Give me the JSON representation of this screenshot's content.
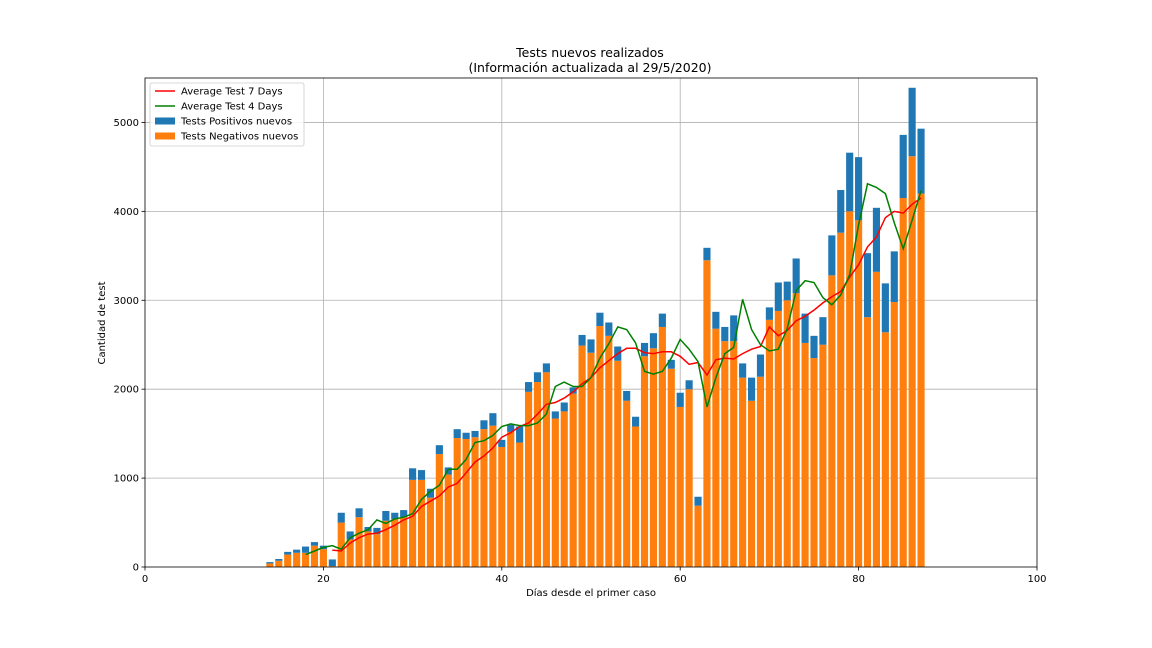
{
  "chart_data": {
    "type": "bar",
    "title": "Tests nuevos realizados",
    "subtitle": "(Información actualizada al 29/5/2020)",
    "xlabel": "Días desde el primer caso",
    "ylabel": "Cantidad de test",
    "xlim": [
      0,
      100
    ],
    "ylim": [
      0,
      5500
    ],
    "xticks": [
      0,
      20,
      40,
      60,
      80,
      100
    ],
    "yticks": [
      0,
      1000,
      2000,
      3000,
      4000,
      5000
    ],
    "grid": true,
    "legend_position": "top-left",
    "colors": {
      "negativos": "#ff7f0e",
      "positivos": "#1f77b4",
      "avg7": "#ff0000",
      "avg4": "#008000"
    },
    "legend": [
      {
        "key": "avg7",
        "label": "Average Test 7 Days",
        "kind": "line"
      },
      {
        "key": "avg4",
        "label": "Average Test 4 Days",
        "kind": "line"
      },
      {
        "key": "positivos",
        "label": "Tests Positivos nuevos",
        "kind": "bar"
      },
      {
        "key": "negativos",
        "label": "Tests Negativos nuevos",
        "kind": "bar"
      }
    ],
    "x": [
      14,
      15,
      16,
      17,
      18,
      19,
      20,
      21,
      22,
      23,
      24,
      25,
      26,
      27,
      28,
      29,
      30,
      31,
      32,
      33,
      34,
      35,
      36,
      37,
      38,
      39,
      40,
      41,
      42,
      43,
      44,
      45,
      46,
      47,
      48,
      49,
      50,
      51,
      52,
      53,
      54,
      55,
      56,
      57,
      58,
      59,
      60,
      61,
      62,
      63,
      64,
      65,
      66,
      67,
      68,
      69,
      70,
      71,
      72,
      73,
      74,
      75,
      76,
      77,
      78,
      79,
      80,
      81,
      82,
      83,
      84,
      85,
      86,
      87
    ],
    "series": [
      {
        "name": "Tests Negativos nuevos",
        "key": "negativos",
        "values": [
          40,
          70,
          140,
          160,
          160,
          240,
          200,
          10,
          500,
          310,
          560,
          400,
          370,
          520,
          540,
          560,
          980,
          980,
          780,
          1270,
          1040,
          1450,
          1440,
          1460,
          1550,
          1590,
          1350,
          1520,
          1400,
          1970,
          2080,
          2190,
          1670,
          1750,
          1950,
          2490,
          2410,
          2710,
          2600,
          2320,
          1870,
          1580,
          2370,
          2460,
          2700,
          2230,
          1800,
          2000,
          690,
          3450,
          2680,
          2540,
          2540,
          2130,
          1870,
          2140,
          2780,
          2880,
          3000,
          3080,
          2520,
          2350,
          2500,
          3280,
          3760,
          4000,
          3900,
          2810,
          3320,
          2640,
          2980,
          4150,
          4620,
          4200
        ]
      },
      {
        "name": "Tests Positivos nuevos",
        "key": "positivos",
        "values": [
          15,
          20,
          30,
          35,
          70,
          40,
          40,
          75,
          110,
          90,
          100,
          50,
          70,
          110,
          70,
          80,
          130,
          110,
          100,
          100,
          80,
          100,
          70,
          70,
          100,
          140,
          80,
          80,
          180,
          110,
          110,
          100,
          80,
          100,
          70,
          120,
          150,
          150,
          150,
          160,
          110,
          110,
          150,
          170,
          150,
          100,
          160,
          100,
          100,
          140,
          190,
          160,
          290,
          160,
          260,
          250,
          140,
          320,
          210,
          390,
          330,
          250,
          310,
          450,
          480,
          660,
          710,
          720,
          720,
          550,
          570,
          710,
          770,
          730
        ]
      },
      {
        "name": "Average Test 7 Days",
        "key": "avg7",
        "x": [
          21,
          22,
          23,
          24,
          25,
          26,
          27,
          28,
          29,
          30,
          31,
          32,
          33,
          34,
          35,
          36,
          37,
          38,
          39,
          40,
          41,
          42,
          43,
          44,
          45,
          46,
          47,
          48,
          49,
          50,
          51,
          52,
          53,
          54,
          55,
          56,
          57,
          58,
          59,
          60,
          61,
          62,
          63,
          64,
          65,
          66,
          67,
          68,
          69,
          70,
          71,
          72,
          73,
          74,
          75,
          76,
          77,
          78,
          79,
          80,
          81,
          82,
          83,
          84,
          85,
          86,
          87
        ],
        "values": [
          190,
          180,
          270,
          330,
          370,
          380,
          420,
          470,
          530,
          570,
          680,
          740,
          800,
          900,
          940,
          1060,
          1180,
          1250,
          1340,
          1460,
          1510,
          1580,
          1620,
          1720,
          1830,
          1850,
          1900,
          1970,
          2060,
          2130,
          2240,
          2320,
          2400,
          2460,
          2460,
          2410,
          2400,
          2420,
          2420,
          2370,
          2280,
          2300,
          2160,
          2330,
          2350,
          2340,
          2400,
          2450,
          2480,
          2700,
          2600,
          2660,
          2770,
          2820,
          2890,
          2970,
          3040,
          3100,
          3260,
          3400,
          3600,
          3710,
          3930,
          4000,
          3980,
          4080,
          4150
        ]
      },
      {
        "name": "Average Test 4 Days",
        "key": "avg4",
        "x": [
          18,
          19,
          20,
          21,
          22,
          23,
          24,
          25,
          26,
          27,
          28,
          29,
          30,
          31,
          32,
          33,
          34,
          35,
          36,
          37,
          38,
          39,
          40,
          41,
          42,
          43,
          44,
          45,
          46,
          47,
          48,
          49,
          50,
          51,
          52,
          53,
          54,
          55,
          56,
          57,
          58,
          59,
          60,
          61,
          62,
          63,
          64,
          65,
          66,
          67,
          68,
          69,
          70,
          71,
          72,
          73,
          74,
          75,
          76,
          77,
          78,
          79,
          80,
          81,
          82,
          83,
          84,
          85,
          86,
          87
        ],
        "values": [
          140,
          180,
          220,
          240,
          200,
          330,
          380,
          420,
          530,
          490,
          540,
          560,
          600,
          760,
          850,
          920,
          1100,
          1100,
          1210,
          1400,
          1420,
          1480,
          1580,
          1610,
          1590,
          1590,
          1620,
          1720,
          2030,
          2080,
          2030,
          2030,
          2130,
          2350,
          2510,
          2700,
          2670,
          2520,
          2200,
          2170,
          2200,
          2350,
          2560,
          2450,
          2310,
          1800,
          2130,
          2400,
          2470,
          3010,
          2670,
          2500,
          2430,
          2450,
          2680,
          3110,
          3220,
          3200,
          3030,
          2950,
          3060,
          3290,
          3850,
          4310,
          4270,
          4200,
          3870,
          3580,
          3900,
          4230
        ]
      }
    ]
  }
}
